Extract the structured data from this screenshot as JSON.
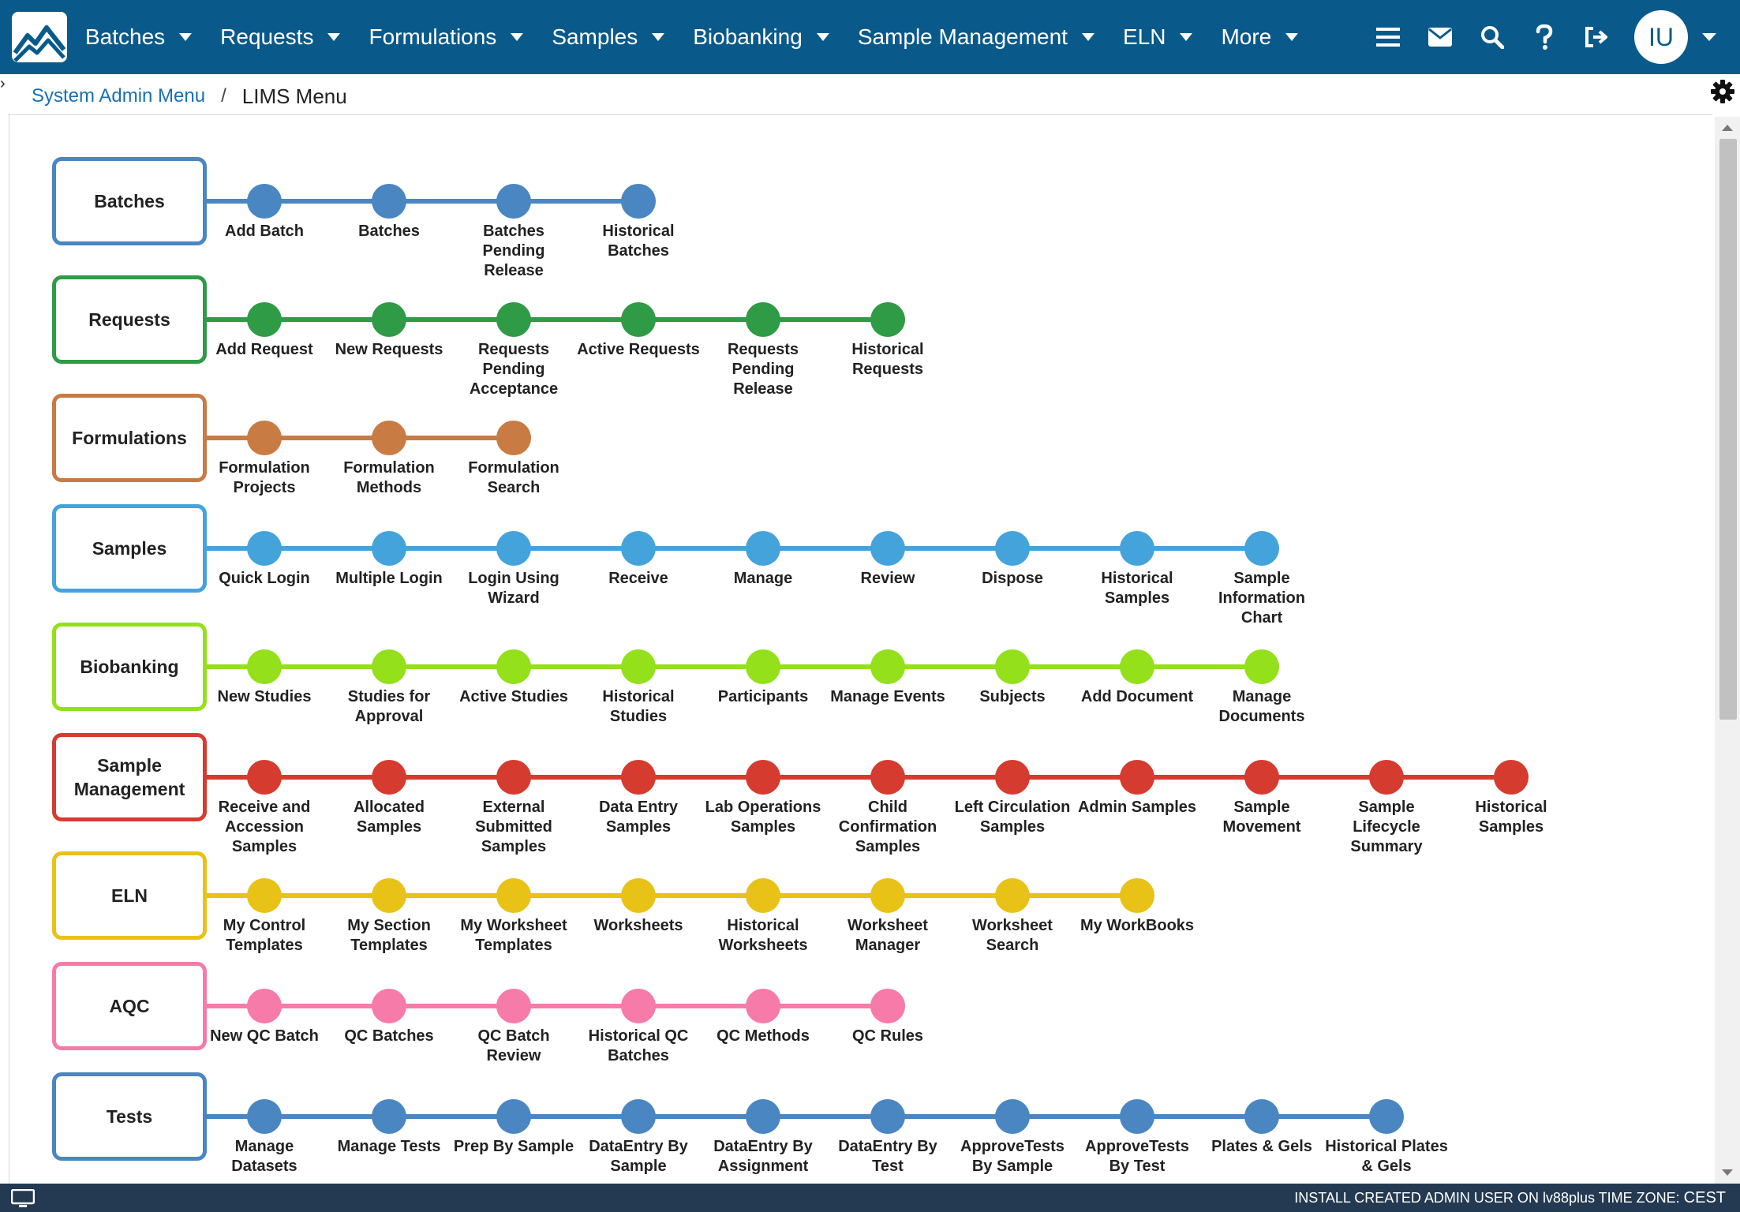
{
  "nav": {
    "items": [
      {
        "label": "Batches"
      },
      {
        "label": "Requests"
      },
      {
        "label": "Formulations"
      },
      {
        "label": "Samples"
      },
      {
        "label": "Biobanking"
      },
      {
        "label": "Sample Management"
      },
      {
        "label": "ELN"
      },
      {
        "label": "More"
      }
    ],
    "icons": [
      "hamburger-icon",
      "mail-icon",
      "search-icon",
      "help-icon",
      "logout-icon"
    ],
    "avatar_initials": "IU"
  },
  "breadcrumb": {
    "parent": "System Admin Menu",
    "separator": "/",
    "current": "LIMS Menu"
  },
  "menu": [
    {
      "title": "Batches",
      "color": "#4a86c2",
      "items": [
        "Add Batch",
        "Batches",
        "Batches Pending Release",
        "Historical Batches"
      ]
    },
    {
      "title": "Requests",
      "color": "#2f9b46",
      "items": [
        "Add Request",
        "New Requests",
        "Requests Pending Acceptance",
        "Active Requests",
        "Requests Pending Release",
        "Historical Requests"
      ]
    },
    {
      "title": "Formulations",
      "color": "#c97b44",
      "items": [
        "Formulation Projects",
        "Formulation Methods",
        "Formulation Search"
      ]
    },
    {
      "title": "Samples",
      "color": "#45a3dc",
      "items": [
        "Quick Login",
        "Multiple Login",
        "Login Using Wizard",
        "Receive",
        "Manage",
        "Review",
        "Dispose",
        "Historical Samples",
        "Sample Information Chart"
      ]
    },
    {
      "title": "Biobanking",
      "color": "#93e01b",
      "items": [
        "New Studies",
        "Studies for Approval",
        "Active Studies",
        "Historical Studies",
        "Participants",
        "Manage Events",
        "Subjects",
        "Add Document",
        "Manage Documents"
      ]
    },
    {
      "title": "Sample Management",
      "color": "#d63b2f",
      "items": [
        "Receive and Accession Samples",
        "Allocated Samples",
        "External Submitted Samples",
        "Data Entry Samples",
        "Lab Operations Samples",
        "Child Confirmation Samples",
        "Left Circulation Samples",
        "Admin Samples",
        "Sample Movement",
        "Sample Lifecycle Summary",
        "Historical Samples"
      ]
    },
    {
      "title": "ELN",
      "color": "#e8c216",
      "items": [
        "My Control Templates",
        "My Section Templates",
        "My Worksheet Templates",
        "Worksheets",
        "Historical Worksheets",
        "Worksheet Manager",
        "Worksheet Search",
        "My WorkBooks"
      ]
    },
    {
      "title": "AQC",
      "color": "#f77ba9",
      "items": [
        "New QC Batch",
        "QC Batches",
        "QC Batch Review",
        "Historical QC Batches",
        "QC Methods",
        "QC Rules"
      ]
    },
    {
      "title": "Tests",
      "color": "#4a86c2",
      "items": [
        "Manage Datasets",
        "Manage Tests",
        "Prep By Sample",
        "DataEntry By Sample",
        "DataEntry By Assignment",
        "DataEntry By Test",
        "ApproveTests By Sample",
        "ApproveTests By Test",
        "Plates & Gels",
        "Historical Plates & Gels"
      ]
    }
  ],
  "status": {
    "text": "INSTALL CREATED ADMIN USER ON lv88plus TIME ZONE: ",
    "timezone": "CEST"
  }
}
